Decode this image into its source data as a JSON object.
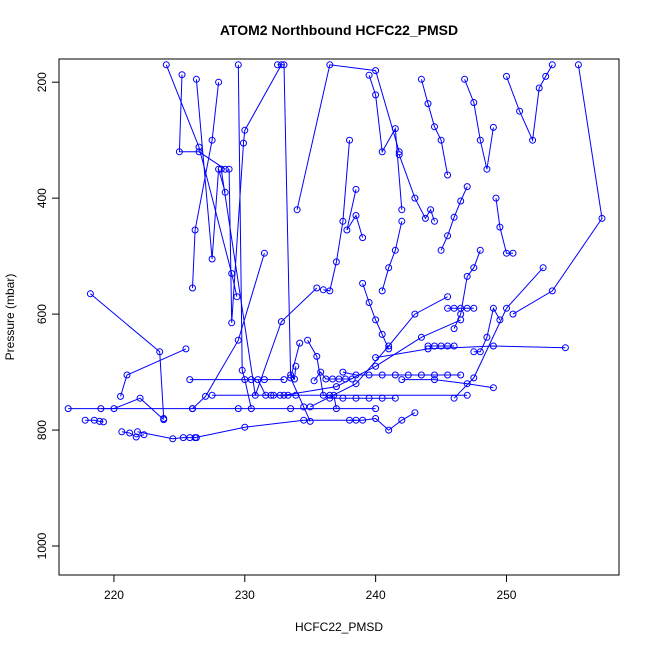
{
  "chart_data": {
    "type": "line",
    "title": "ATOM2 Northbound HCFC22_PMSD",
    "xlabel": "HCFC22_PMSD",
    "ylabel": "Pressure (mbar)",
    "xlim": [
      215.8,
      258.6
    ],
    "ylim": [
      1050,
      160
    ],
    "y_reversed": true,
    "x_ticks": [
      220,
      230,
      240,
      250
    ],
    "y_ticks": [
      200,
      400,
      600,
      800,
      1000
    ],
    "grid": false,
    "legend": "none",
    "series_color": "#0000ff",
    "marker": "open-circle",
    "series": [
      {
        "points": [
          [
            216.5,
            763
          ],
          [
            226.0,
            763
          ],
          [
            229.5,
            763
          ],
          [
            233.5,
            763
          ],
          [
            240.0,
            763
          ]
        ]
      },
      {
        "points": [
          [
            218.2,
            565
          ],
          [
            223.5,
            665
          ],
          [
            223.8,
            780
          ]
        ]
      },
      {
        "points": [
          [
            217.8,
            783
          ],
          [
            218.5,
            783
          ],
          [
            218.9,
            785
          ],
          [
            219.2,
            786
          ]
        ]
      },
      {
        "points": [
          [
            219.0,
            763
          ],
          [
            220.0,
            763
          ],
          [
            222.0,
            745
          ],
          [
            223.8,
            782
          ]
        ]
      },
      {
        "points": [
          [
            220.5,
            742
          ],
          [
            221.0,
            705
          ],
          [
            225.5,
            660
          ]
        ]
      },
      {
        "points": [
          [
            220.6,
            803
          ],
          [
            221.2,
            805
          ],
          [
            221.7,
            812
          ],
          [
            222.3,
            808
          ]
        ]
      },
      {
        "points": [
          [
            221.8,
            803
          ],
          [
            224.5,
            815
          ],
          [
            225.3,
            813
          ],
          [
            225.8,
            813
          ],
          [
            226.3,
            813
          ]
        ]
      },
      {
        "points": [
          [
            225.8,
            713
          ],
          [
            230.5,
            713
          ],
          [
            231.5,
            713
          ],
          [
            233.0,
            713
          ]
        ]
      },
      {
        "points": [
          [
            227.5,
            740
          ],
          [
            232.0,
            740
          ],
          [
            236.5,
            740
          ],
          [
            247.0,
            740
          ]
        ]
      },
      {
        "points": [
          [
            226.0,
            555
          ],
          [
            226.2,
            455
          ],
          [
            227.5,
            300
          ],
          [
            228.0,
            200
          ]
        ]
      },
      {
        "points": [
          [
            225.2,
            187
          ],
          [
            225.0,
            320
          ],
          [
            226.5,
            320
          ],
          [
            228.5,
            350
          ]
        ]
      },
      {
        "points": [
          [
            224.0,
            170
          ],
          [
            226.5,
            312
          ],
          [
            229.0,
            530
          ],
          [
            229.4,
            570
          ]
        ]
      },
      {
        "points": [
          [
            226.3,
            195
          ],
          [
            227.5,
            505
          ],
          [
            228.0,
            350
          ],
          [
            228.5,
            390
          ]
        ]
      },
      {
        "points": [
          [
            228.8,
            350
          ],
          [
            229.0,
            615
          ],
          [
            229.9,
            305
          ],
          [
            230.0,
            283
          ],
          [
            232.8,
            170
          ]
        ]
      },
      {
        "points": [
          [
            228.2,
            350
          ],
          [
            230.8,
            740
          ],
          [
            232.8,
            613
          ],
          [
            235.5,
            555
          ]
        ]
      },
      {
        "points": [
          [
            229.5,
            170
          ],
          [
            229.8,
            697
          ],
          [
            230.0,
            713
          ],
          [
            230.5,
            763
          ]
        ]
      },
      {
        "points": [
          [
            231.0,
            713
          ],
          [
            231.6,
            740
          ],
          [
            232.2,
            740
          ],
          [
            232.7,
            740
          ],
          [
            233.3,
            740
          ],
          [
            233.9,
            740
          ]
        ]
      },
      {
        "points": [
          [
            231.5,
            495
          ],
          [
            229.5,
            645
          ],
          [
            227.0,
            742
          ],
          [
            226.0,
            763
          ]
        ]
      },
      {
        "points": [
          [
            232.5,
            170
          ],
          [
            233.0,
            170
          ],
          [
            233.5,
            705
          ],
          [
            233.8,
            712
          ],
          [
            233.9,
            690
          ]
        ]
      },
      {
        "points": [
          [
            234.0,
            420
          ],
          [
            236.5,
            170
          ],
          [
            240.0,
            180
          ],
          [
            241.8,
            320
          ]
        ]
      },
      {
        "points": [
          [
            234.2,
            650
          ],
          [
            233.5,
            710
          ],
          [
            234.5,
            760
          ],
          [
            235.0,
            785
          ]
        ]
      },
      {
        "points": [
          [
            234.8,
            645
          ],
          [
            235.5,
            673
          ],
          [
            236.0,
            740
          ],
          [
            236.8,
            740
          ],
          [
            237.0,
            763
          ]
        ]
      },
      {
        "points": [
          [
            235.3,
            715
          ],
          [
            235.8,
            700
          ],
          [
            236.2,
            712
          ],
          [
            236.7,
            712
          ],
          [
            237.2,
            712
          ],
          [
            237.7,
            712
          ],
          [
            238.2,
            712
          ]
        ]
      },
      {
        "points": [
          [
            236.0,
            558
          ],
          [
            236.5,
            560
          ],
          [
            237.0,
            510
          ],
          [
            237.5,
            440
          ],
          [
            238.0,
            300
          ]
        ]
      },
      {
        "points": [
          [
            238.5,
            385
          ],
          [
            237.8,
            455
          ],
          [
            238.5,
            430
          ],
          [
            239.0,
            468
          ]
        ]
      },
      {
        "points": [
          [
            239.0,
            547
          ],
          [
            239.5,
            580
          ],
          [
            240.0,
            610
          ],
          [
            240.5,
            635
          ],
          [
            241.0,
            660
          ]
        ]
      },
      {
        "points": [
          [
            237.5,
            700
          ],
          [
            238.5,
            705
          ],
          [
            239.5,
            705
          ],
          [
            240.5,
            705
          ],
          [
            241.5,
            705
          ],
          [
            242.5,
            705
          ],
          [
            243.5,
            705
          ],
          [
            244.5,
            705
          ],
          [
            245.5,
            705
          ],
          [
            246.5,
            705
          ]
        ]
      },
      {
        "points": [
          [
            236.5,
            745
          ],
          [
            237.5,
            745
          ],
          [
            238.5,
            745
          ],
          [
            239.5,
            745
          ],
          [
            240.5,
            745
          ],
          [
            241.5,
            745
          ]
        ]
      },
      {
        "points": [
          [
            238.0,
            783
          ],
          [
            239.0,
            783
          ],
          [
            240.0,
            780
          ],
          [
            241.0,
            800
          ],
          [
            242.0,
            783
          ],
          [
            243.0,
            770
          ]
        ]
      },
      {
        "points": [
          [
            239.5,
            188
          ],
          [
            240.0,
            222
          ],
          [
            240.5,
            320
          ],
          [
            241.5,
            280
          ],
          [
            242.0,
            420
          ]
        ]
      },
      {
        "points": [
          [
            240.5,
            560
          ],
          [
            241.0,
            520
          ],
          [
            241.5,
            490
          ],
          [
            242.0,
            440
          ]
        ]
      },
      {
        "points": [
          [
            241.8,
            325
          ],
          [
            243.0,
            400
          ],
          [
            243.8,
            435
          ],
          [
            244.2,
            420
          ],
          [
            244.5,
            440
          ]
        ]
      },
      {
        "points": [
          [
            243.5,
            195
          ],
          [
            244.0,
            237
          ],
          [
            244.5,
            277
          ],
          [
            245.0,
            300
          ],
          [
            245.5,
            360
          ]
        ]
      },
      {
        "points": [
          [
            244.0,
            655
          ],
          [
            244.5,
            655
          ],
          [
            245.0,
            655
          ],
          [
            245.5,
            655
          ],
          [
            246.0,
            655
          ]
        ]
      },
      {
        "points": [
          [
            245.0,
            490
          ],
          [
            245.5,
            465
          ],
          [
            246.0,
            433
          ],
          [
            246.5,
            405
          ],
          [
            247.0,
            380
          ]
        ]
      },
      {
        "points": [
          [
            245.5,
            590
          ],
          [
            246.0,
            590
          ],
          [
            246.5,
            590
          ],
          [
            247.0,
            590
          ],
          [
            247.5,
            590
          ]
        ]
      },
      {
        "points": [
          [
            246.0,
            625
          ],
          [
            246.5,
            600
          ],
          [
            247.0,
            535
          ],
          [
            247.5,
            520
          ],
          [
            248.0,
            490
          ]
        ]
      },
      {
        "points": [
          [
            246.8,
            195
          ],
          [
            247.5,
            235
          ],
          [
            248.0,
            300
          ],
          [
            248.5,
            350
          ],
          [
            249.0,
            278
          ]
        ]
      },
      {
        "points": [
          [
            247.5,
            665
          ],
          [
            248.0,
            665
          ],
          [
            248.5,
            640
          ],
          [
            249.0,
            590
          ],
          [
            249.5,
            610
          ]
        ]
      },
      {
        "points": [
          [
            249.2,
            400
          ],
          [
            249.5,
            450
          ],
          [
            250.0,
            495
          ],
          [
            250.5,
            495
          ]
        ]
      },
      {
        "points": [
          [
            250.0,
            190
          ],
          [
            251.0,
            250
          ],
          [
            252.0,
            300
          ],
          [
            252.5,
            210
          ],
          [
            253.0,
            190
          ],
          [
            253.5,
            170
          ]
        ]
      },
      {
        "points": [
          [
            252.8,
            520
          ],
          [
            250.0,
            590
          ],
          [
            247.5,
            710
          ],
          [
            246.0,
            745
          ]
        ]
      },
      {
        "points": [
          [
            254.5,
            658
          ],
          [
            249.0,
            655
          ],
          [
            244.0,
            660
          ],
          [
            240.0,
            675
          ]
        ]
      },
      {
        "points": [
          [
            255.5,
            170
          ],
          [
            257.3,
            435
          ],
          [
            253.5,
            560
          ],
          [
            250.5,
            600
          ]
        ]
      },
      {
        "points": [
          [
            249.0,
            727
          ],
          [
            247.0,
            720
          ],
          [
            244.5,
            713
          ],
          [
            242.0,
            713
          ]
        ]
      },
      {
        "points": [
          [
            226.2,
            813
          ],
          [
            230.0,
            795
          ],
          [
            234.5,
            783
          ],
          [
            238.5,
            783
          ]
        ]
      },
      {
        "points": [
          [
            233.0,
            740
          ],
          [
            237.0,
            725
          ],
          [
            240.0,
            690
          ],
          [
            243.5,
            640
          ],
          [
            246.5,
            610
          ]
        ]
      },
      {
        "points": [
          [
            235.0,
            760
          ],
          [
            238.5,
            720
          ],
          [
            241.0,
            655
          ],
          [
            243.0,
            600
          ],
          [
            245.5,
            570
          ]
        ]
      }
    ]
  }
}
